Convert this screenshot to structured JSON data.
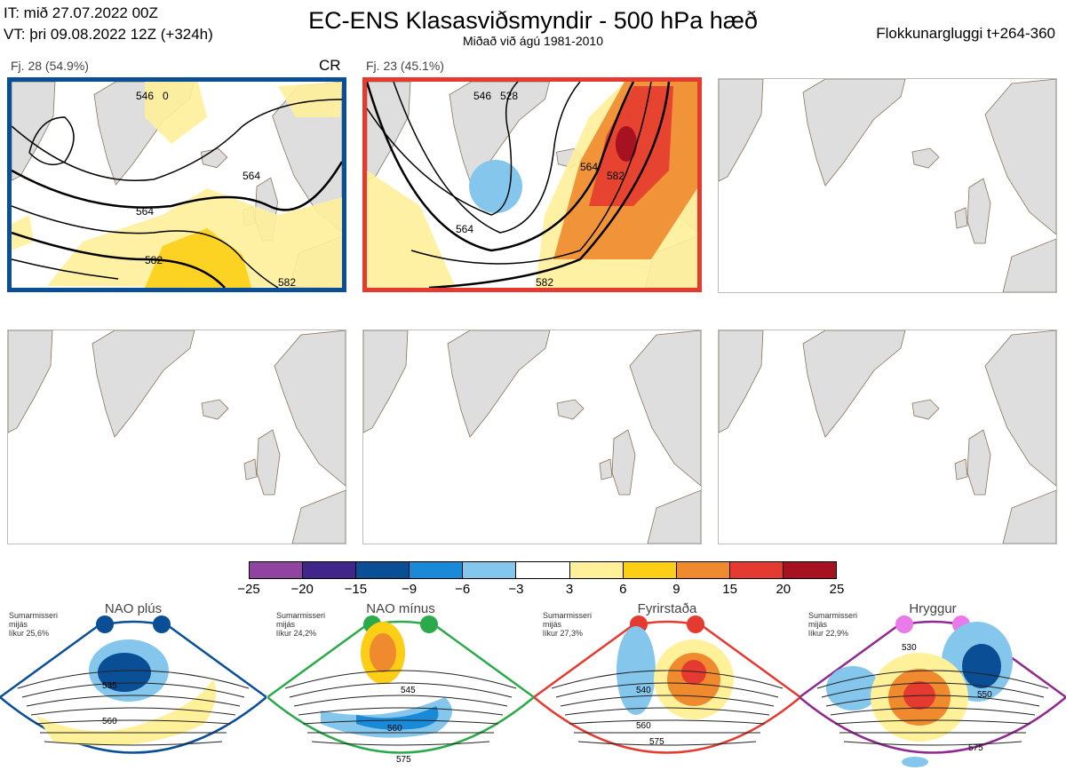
{
  "header": {
    "init_line": "IT: mið 27.07.2022 00Z",
    "valid_line": "VT: þri 09.08.2022 12Z  (+324h)",
    "title": "EC-ENS Klasasviðsmyndir - 500 hPa hæð",
    "subtitle": "Miðað við ágú 1981-2010",
    "window": "Flokkunargluggi t+264-360"
  },
  "panels": [
    {
      "label": "Fj. 28 (54.9%)",
      "cr": "CR",
      "border_color": "#0a4f96",
      "contour_labels": [
        "546",
        "564",
        "582",
        "564",
        "582",
        "0"
      ]
    },
    {
      "label": "Fj. 23 (45.1%)",
      "cr": "",
      "border_color": "#e43a30",
      "contour_labels": [
        "564",
        "546",
        "528",
        "564",
        "582",
        "582"
      ]
    },
    {
      "label": "",
      "cr": "",
      "border_color": ""
    },
    {
      "label": "",
      "cr": "",
      "border_color": ""
    },
    {
      "label": "",
      "cr": "",
      "border_color": ""
    },
    {
      "label": "",
      "cr": "",
      "border_color": ""
    }
  ],
  "colorbar": {
    "ticks": [
      "−25",
      "−20",
      "−15",
      "−9",
      "−6",
      "−3",
      "3",
      "6",
      "9",
      "15",
      "20",
      "25"
    ],
    "colors": [
      "#8e44a0",
      "#40258a",
      "#0a4f96",
      "#1a8ad8",
      "#85c7ec",
      "#ffffff",
      "#fff09a",
      "#fcce15",
      "#f08a2e",
      "#e43a30",
      "#a61220"
    ]
  },
  "regimes": [
    {
      "title": "NAO plús",
      "info": [
        "Sumarmisseri",
        "mijás",
        "líkur 25,6%"
      ],
      "border_color": "#0a4f96",
      "dot_color": "#0a4f96",
      "contour_labels": [
        "535",
        "560"
      ]
    },
    {
      "title": "NAO mínus",
      "info": [
        "Sumarmisseri",
        "mijás",
        "líkur 24,2%"
      ],
      "border_color": "#2aaa4a",
      "dot_color": "#2aaa4a",
      "contour_labels": [
        "545",
        "560",
        "575"
      ]
    },
    {
      "title": "Fyrirstaða",
      "info": [
        "Sumarmisseri",
        "mijás",
        "líkur 27,3%"
      ],
      "border_color": "#e43a30",
      "dot_color": "#e43a30",
      "contour_labels": [
        "540",
        "560",
        "575"
      ]
    },
    {
      "title": "Hryggur",
      "info": [
        "Sumarmisseri",
        "mijás",
        "líkur 22,9%"
      ],
      "border_color": "#8e2a8e",
      "dot_color": "#ea7aea",
      "contour_labels": [
        "530",
        "550",
        "575"
      ]
    }
  ]
}
